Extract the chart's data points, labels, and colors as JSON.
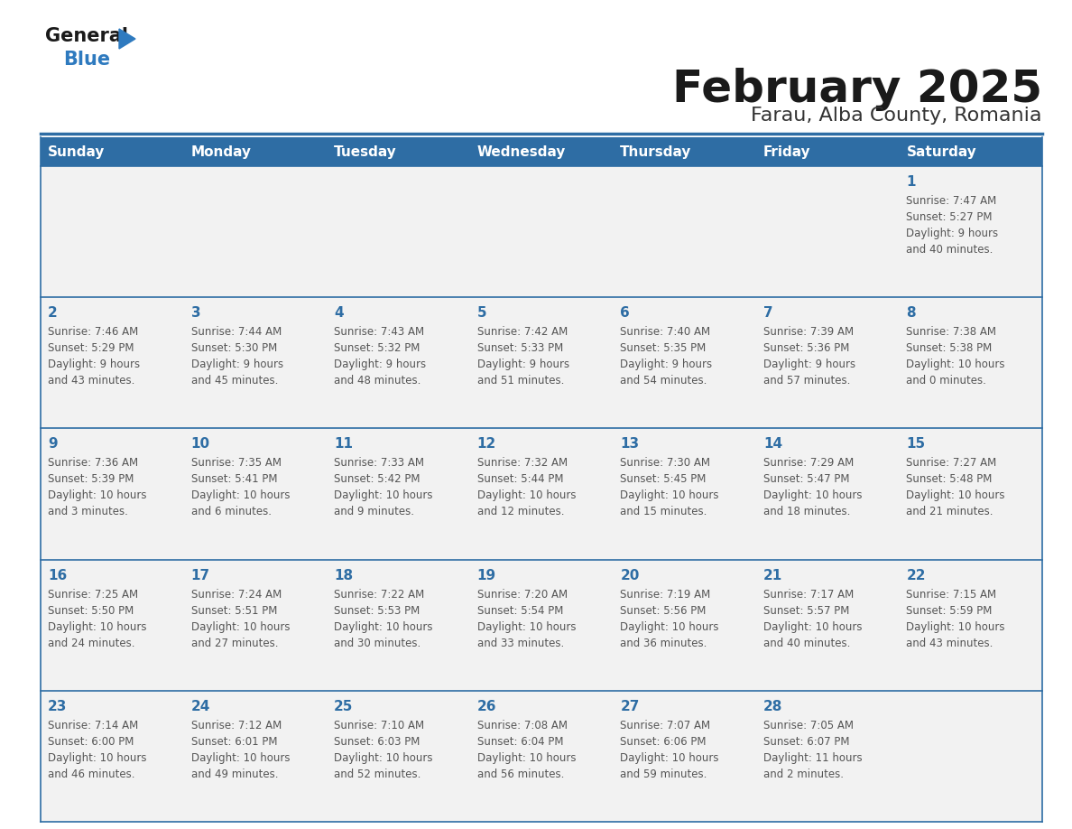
{
  "title": "February 2025",
  "subtitle": "Farau, Alba County, Romania",
  "days_of_week": [
    "Sunday",
    "Monday",
    "Tuesday",
    "Wednesday",
    "Thursday",
    "Friday",
    "Saturday"
  ],
  "header_bg": "#2e6da4",
  "header_text": "#ffffff",
  "cell_bg": "#f2f2f2",
  "day_number_color": "#2e6da4",
  "text_color": "#555555",
  "border_color": "#2e6da4",
  "title_color": "#1a1a1a",
  "subtitle_color": "#333333",
  "calendar_data": [
    [
      {
        "day": null,
        "sunrise": null,
        "sunset": null,
        "daylight": null
      },
      {
        "day": null,
        "sunrise": null,
        "sunset": null,
        "daylight": null
      },
      {
        "day": null,
        "sunrise": null,
        "sunset": null,
        "daylight": null
      },
      {
        "day": null,
        "sunrise": null,
        "sunset": null,
        "daylight": null
      },
      {
        "day": null,
        "sunrise": null,
        "sunset": null,
        "daylight": null
      },
      {
        "day": null,
        "sunrise": null,
        "sunset": null,
        "daylight": null
      },
      {
        "day": 1,
        "sunrise": "7:47 AM",
        "sunset": "5:27 PM",
        "daylight": "9 hours\nand 40 minutes."
      }
    ],
    [
      {
        "day": 2,
        "sunrise": "7:46 AM",
        "sunset": "5:29 PM",
        "daylight": "9 hours\nand 43 minutes."
      },
      {
        "day": 3,
        "sunrise": "7:44 AM",
        "sunset": "5:30 PM",
        "daylight": "9 hours\nand 45 minutes."
      },
      {
        "day": 4,
        "sunrise": "7:43 AM",
        "sunset": "5:32 PM",
        "daylight": "9 hours\nand 48 minutes."
      },
      {
        "day": 5,
        "sunrise": "7:42 AM",
        "sunset": "5:33 PM",
        "daylight": "9 hours\nand 51 minutes."
      },
      {
        "day": 6,
        "sunrise": "7:40 AM",
        "sunset": "5:35 PM",
        "daylight": "9 hours\nand 54 minutes."
      },
      {
        "day": 7,
        "sunrise": "7:39 AM",
        "sunset": "5:36 PM",
        "daylight": "9 hours\nand 57 minutes."
      },
      {
        "day": 8,
        "sunrise": "7:38 AM",
        "sunset": "5:38 PM",
        "daylight": "10 hours\nand 0 minutes."
      }
    ],
    [
      {
        "day": 9,
        "sunrise": "7:36 AM",
        "sunset": "5:39 PM",
        "daylight": "10 hours\nand 3 minutes."
      },
      {
        "day": 10,
        "sunrise": "7:35 AM",
        "sunset": "5:41 PM",
        "daylight": "10 hours\nand 6 minutes."
      },
      {
        "day": 11,
        "sunrise": "7:33 AM",
        "sunset": "5:42 PM",
        "daylight": "10 hours\nand 9 minutes."
      },
      {
        "day": 12,
        "sunrise": "7:32 AM",
        "sunset": "5:44 PM",
        "daylight": "10 hours\nand 12 minutes."
      },
      {
        "day": 13,
        "sunrise": "7:30 AM",
        "sunset": "5:45 PM",
        "daylight": "10 hours\nand 15 minutes."
      },
      {
        "day": 14,
        "sunrise": "7:29 AM",
        "sunset": "5:47 PM",
        "daylight": "10 hours\nand 18 minutes."
      },
      {
        "day": 15,
        "sunrise": "7:27 AM",
        "sunset": "5:48 PM",
        "daylight": "10 hours\nand 21 minutes."
      }
    ],
    [
      {
        "day": 16,
        "sunrise": "7:25 AM",
        "sunset": "5:50 PM",
        "daylight": "10 hours\nand 24 minutes."
      },
      {
        "day": 17,
        "sunrise": "7:24 AM",
        "sunset": "5:51 PM",
        "daylight": "10 hours\nand 27 minutes."
      },
      {
        "day": 18,
        "sunrise": "7:22 AM",
        "sunset": "5:53 PM",
        "daylight": "10 hours\nand 30 minutes."
      },
      {
        "day": 19,
        "sunrise": "7:20 AM",
        "sunset": "5:54 PM",
        "daylight": "10 hours\nand 33 minutes."
      },
      {
        "day": 20,
        "sunrise": "7:19 AM",
        "sunset": "5:56 PM",
        "daylight": "10 hours\nand 36 minutes."
      },
      {
        "day": 21,
        "sunrise": "7:17 AM",
        "sunset": "5:57 PM",
        "daylight": "10 hours\nand 40 minutes."
      },
      {
        "day": 22,
        "sunrise": "7:15 AM",
        "sunset": "5:59 PM",
        "daylight": "10 hours\nand 43 minutes."
      }
    ],
    [
      {
        "day": 23,
        "sunrise": "7:14 AM",
        "sunset": "6:00 PM",
        "daylight": "10 hours\nand 46 minutes."
      },
      {
        "day": 24,
        "sunrise": "7:12 AM",
        "sunset": "6:01 PM",
        "daylight": "10 hours\nand 49 minutes."
      },
      {
        "day": 25,
        "sunrise": "7:10 AM",
        "sunset": "6:03 PM",
        "daylight": "10 hours\nand 52 minutes."
      },
      {
        "day": 26,
        "sunrise": "7:08 AM",
        "sunset": "6:04 PM",
        "daylight": "10 hours\nand 56 minutes."
      },
      {
        "day": 27,
        "sunrise": "7:07 AM",
        "sunset": "6:06 PM",
        "daylight": "10 hours\nand 59 minutes."
      },
      {
        "day": 28,
        "sunrise": "7:05 AM",
        "sunset": "6:07 PM",
        "daylight": "11 hours\nand 2 minutes."
      },
      {
        "day": null,
        "sunrise": null,
        "sunset": null,
        "daylight": null
      }
    ]
  ],
  "logo_text_general": "General",
  "logo_text_blue": "Blue",
  "logo_color_general": "#1a1a1a",
  "logo_color_blue": "#2e7abf",
  "logo_triangle_color": "#2e7abf"
}
